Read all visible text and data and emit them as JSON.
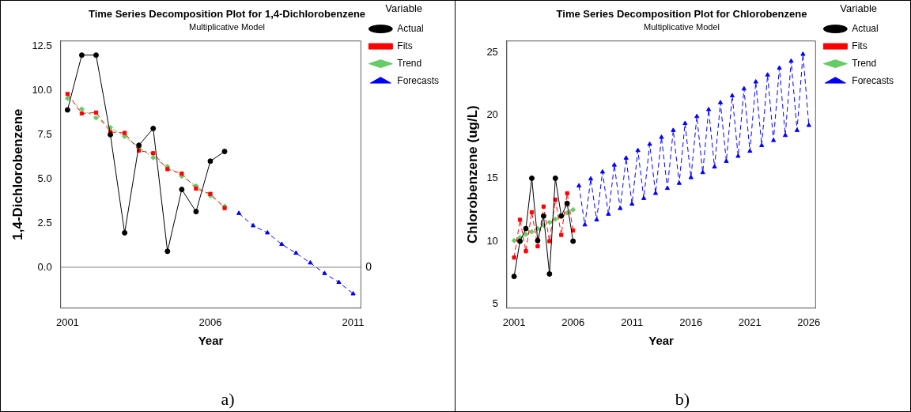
{
  "chart_data": [
    {
      "type": "line",
      "title": "Time Series Decomposition Plot for 1,4-Dichlorobenzene",
      "subtitle": "Multiplicative Model",
      "xlabel": "Year",
      "ylabel": "1,4-Dichlorobenzene",
      "legend_title": "Variable",
      "legend": "top right",
      "grid": false,
      "xlim": [
        2000.76,
        2011.27
      ],
      "xticks": [
        2001,
        2006,
        2011
      ],
      "ylim": [
        -2.3,
        12.8
      ],
      "yticks": [
        {
          "value": 0,
          "label": "0.0"
        },
        2.5,
        {
          "value": 5,
          "label": "5.0"
        },
        7.5,
        {
          "value": 10,
          "label": "10.0"
        },
        12.5
      ],
      "ref_lines": [
        {
          "axis": "y",
          "value": 0,
          "label": "0",
          "color": "#808080"
        }
      ],
      "annotations": [
        "a)"
      ],
      "series": [
        {
          "name": "Actual",
          "color": "#000000",
          "marker": "circle",
          "line_style": "solid",
          "x": [
            2001,
            2001.5,
            2002,
            2002.5,
            2003,
            2003.5,
            2004,
            2004.5,
            2005,
            2005.5,
            2006,
            2006.5
          ],
          "values": [
            8.9,
            12.0,
            12.0,
            7.5,
            1.95,
            6.9,
            7.85,
            0.9,
            4.4,
            3.15,
            6.0,
            6.55
          ]
        },
        {
          "name": "Fits",
          "color": "#ff0000",
          "marker": "square",
          "line_style": "dashed",
          "x": [
            2001,
            2001.5,
            2002,
            2002.5,
            2003,
            2003.5,
            2004,
            2004.5,
            2005,
            2005.5,
            2006,
            2006.5
          ],
          "values": [
            9.8,
            8.7,
            8.75,
            7.65,
            7.6,
            6.6,
            6.45,
            5.55,
            5.3,
            4.45,
            4.15,
            3.35
          ]
        },
        {
          "name": "Trend",
          "color": "#66cc66",
          "marker": "diamond",
          "line_style": "dashed",
          "x": [
            2001,
            2001.5,
            2002,
            2002.5,
            2003,
            2003.5,
            2004,
            2004.5,
            2005,
            2005.5,
            2006,
            2006.5
          ],
          "values": [
            9.55,
            8.95,
            8.45,
            7.9,
            7.4,
            6.8,
            6.2,
            5.7,
            5.15,
            4.6,
            4.05,
            3.45
          ]
        },
        {
          "name": "Forecasts",
          "color": "#0000ff",
          "marker": "triangle",
          "line_style": "dashed",
          "x": [
            2007,
            2007.5,
            2008,
            2008.5,
            2009,
            2009.5,
            2010,
            2010.5,
            2011
          ],
          "values": [
            3.05,
            2.35,
            1.95,
            1.3,
            0.8,
            0.25,
            -0.35,
            -0.85,
            -1.5
          ]
        }
      ]
    },
    {
      "type": "line",
      "title": "Time Series Decomposition Plot for Chlorobenzene",
      "subtitle": "Multiplicative Model",
      "xlabel": "Year",
      "ylabel": "Chlorobenzene (ug/L)",
      "legend_title": "Variable",
      "legend": "top right",
      "grid": false,
      "xlim": [
        2000.38,
        2026.57
      ],
      "xticks": [
        2001,
        2006,
        2011,
        2016,
        2021,
        2026
      ],
      "ylim": [
        4.7,
        25.9
      ],
      "yticks": [
        5,
        10,
        15,
        20,
        25
      ],
      "annotations": [
        "b)"
      ],
      "series": [
        {
          "name": "Actual",
          "color": "#000000",
          "marker": "circle",
          "line_style": "solid",
          "x": [
            2001,
            2001.5,
            2002,
            2002.5,
            2003,
            2003.5,
            2004,
            2004.5,
            2005,
            2005.5,
            2006
          ],
          "values": [
            7.2,
            10.0,
            11.0,
            15.0,
            10.05,
            12.0,
            7.4,
            15.0,
            12.0,
            13.0,
            10.0
          ]
        },
        {
          "name": "Fits",
          "color": "#ff0000",
          "marker": "square",
          "line_style": "dashed",
          "x": [
            2001,
            2001.5,
            2002,
            2002.5,
            2003,
            2003.5,
            2004,
            2004.5,
            2005,
            2005.5,
            2006
          ],
          "values": [
            8.7,
            11.7,
            9.2,
            12.3,
            9.6,
            12.75,
            10.0,
            13.3,
            10.5,
            13.8,
            10.85
          ]
        },
        {
          "name": "Trend",
          "color": "#66cc66",
          "marker": "diamond",
          "line_style": "dashed",
          "x": [
            2001,
            2001.5,
            2002,
            2002.5,
            2003,
            2003.5,
            2004,
            2004.5,
            2005,
            2005.5,
            2006
          ],
          "values": [
            10.05,
            10.3,
            10.55,
            10.75,
            11.0,
            11.25,
            11.5,
            11.75,
            12.0,
            12.25,
            12.5
          ]
        },
        {
          "name": "Forecasts",
          "color": "#0000ff",
          "marker": "triangle",
          "line_style": "dashed",
          "x": [
            2006.5,
            2007,
            2007.5,
            2008,
            2008.5,
            2009,
            2009.5,
            2010,
            2010.5,
            2011,
            2011.5,
            2012,
            2012.5,
            2013,
            2013.5,
            2014,
            2014.5,
            2015,
            2015.5,
            2016,
            2016.5,
            2017,
            2017.5,
            2018,
            2018.5,
            2019,
            2019.5,
            2020,
            2020.5,
            2021,
            2021.5,
            2022,
            2022.5,
            2023,
            2023.5,
            2024,
            2024.5,
            2025,
            2025.5,
            2026
          ],
          "values": [
            14.4,
            11.3,
            14.95,
            11.7,
            15.5,
            12.15,
            16.05,
            12.6,
            16.6,
            12.95,
            17.2,
            13.4,
            17.7,
            13.8,
            18.25,
            14.2,
            18.8,
            14.6,
            19.35,
            15.05,
            19.9,
            15.45,
            20.45,
            15.9,
            21.0,
            16.35,
            21.55,
            16.75,
            22.1,
            17.15,
            22.65,
            17.6,
            23.2,
            18.0,
            23.75,
            18.4,
            24.3,
            18.8,
            24.85,
            19.2
          ]
        }
      ]
    }
  ]
}
